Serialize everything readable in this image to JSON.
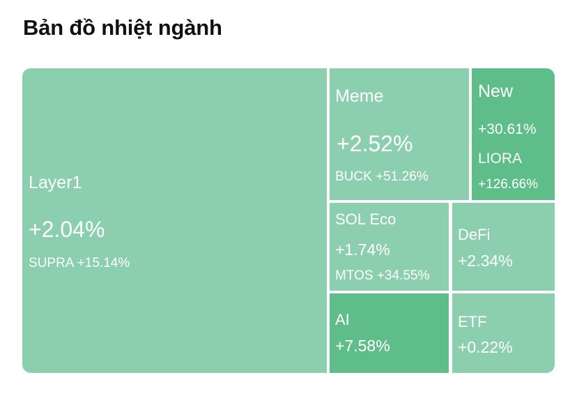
{
  "page": {
    "title": "Bản đồ nhiệt ngành"
  },
  "colors": {
    "tile_light": "#8ccfae",
    "tile_dark": "#5ebd89",
    "text": "#ffffff",
    "title": "#111111"
  },
  "tiles": {
    "layer1": {
      "name": "Layer1",
      "change": "+2.04%",
      "top_coin": "SUPRA +15.14%"
    },
    "meme": {
      "name": "Meme",
      "change": "+2.52%",
      "top_coin": "BUCK +51.26%"
    },
    "new": {
      "name": "New",
      "change": "+30.61%",
      "top_coin_name": "LIORA",
      "top_coin_change": "+126.66%"
    },
    "sol_eco": {
      "name": "SOL Eco",
      "change": "+1.74%",
      "top_coin": "MTOS +34.55%"
    },
    "defi": {
      "name": "DeFi",
      "change": "+2.34%"
    },
    "ai": {
      "name": "AI",
      "change": "+7.58%"
    },
    "etf": {
      "name": "ETF",
      "change": "+0.22%"
    }
  }
}
